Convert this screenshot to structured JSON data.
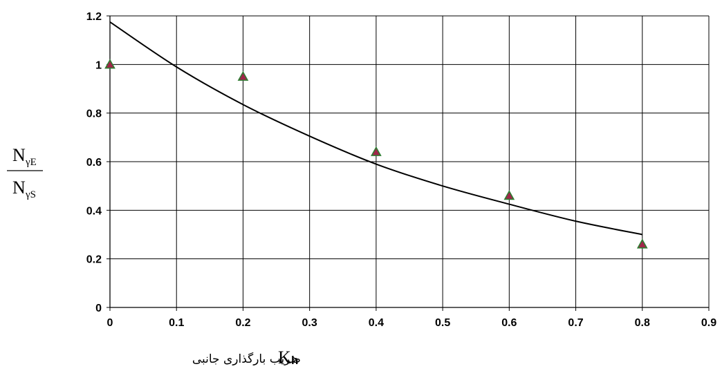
{
  "chart_data": {
    "type": "scatter",
    "xlim": [
      0,
      0.9
    ],
    "ylim": [
      0,
      1.2
    ],
    "x_ticks": [
      "0",
      "0.1",
      "0.2",
      "0.3",
      "0.4",
      "0.5",
      "0.6",
      "0.7",
      "0.8",
      "0.9"
    ],
    "y_ticks": [
      "0",
      "0.2",
      "0.4",
      "0.6",
      "0.8",
      "1",
      "1.2"
    ],
    "grid": true,
    "ylabel": {
      "numerator": "N",
      "numerator_sub": "γE",
      "denominator": "N",
      "denominator_sub": "γS"
    },
    "xlabel": {
      "text": "ضریب بارگذاری جانبی",
      "symbol": "K",
      "symbol_sub": "h"
    },
    "series": [
      {
        "kind": "points",
        "marker": "triangle",
        "fill_color": "#a0264a",
        "edge_color": "#2e7d32",
        "x": [
          0,
          0.2,
          0.4,
          0.6,
          0.8
        ],
        "y": [
          1.0,
          0.95,
          0.64,
          0.46,
          0.26
        ]
      },
      {
        "kind": "curve",
        "line_color": "#000000",
        "x": [
          0,
          0.1,
          0.2,
          0.3,
          0.4,
          0.5,
          0.6,
          0.7,
          0.8
        ],
        "y": [
          1.175,
          0.99,
          0.835,
          0.705,
          0.59,
          0.5,
          0.425,
          0.355,
          0.3
        ]
      }
    ]
  }
}
